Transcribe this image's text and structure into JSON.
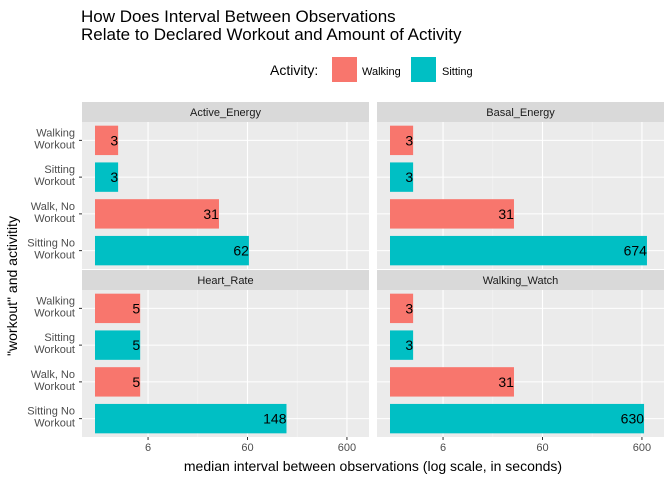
{
  "chart_data": {
    "type": "bar",
    "orientation": "horizontal",
    "title_lines": [
      "How Does Interval Between Observations",
      "Relate to Declared Workout and Amount of Activity"
    ],
    "xlabel": "median interval between observations (log scale, in seconds)",
    "ylabel": "\"workout\" and activitity",
    "x_scale": "log10",
    "xlim": [
      1.3,
      1000
    ],
    "x_ticks": [
      6,
      60,
      600
    ],
    "x_tick_labels": [
      "6",
      "60",
      "600"
    ],
    "grid": true,
    "legend": {
      "title": "Activity:",
      "position": "top",
      "entries": [
        {
          "label": "Walking",
          "color": "#F8766D"
        },
        {
          "label": "Sitting",
          "color": "#00BFC4"
        }
      ]
    },
    "categories": [
      [
        "Walking",
        "Workout"
      ],
      [
        "Sitting",
        "Workout"
      ],
      [
        "Walk, No",
        "Workout"
      ],
      [
        "Sitting No",
        "Workout"
      ]
    ],
    "category_activity": [
      "Walking",
      "Sitting",
      "Walking",
      "Sitting"
    ],
    "panels": [
      {
        "name": "Active_Energy",
        "values": [
          3,
          3,
          31,
          62
        ],
        "labels": [
          "3",
          "3",
          "31",
          "62"
        ]
      },
      {
        "name": "Basal_Energy",
        "values": [
          3,
          3,
          31,
          674
        ],
        "labels": [
          "3",
          "3",
          "31",
          "674"
        ]
      },
      {
        "name": "Heart_Rate",
        "values": [
          5,
          5,
          5,
          148
        ],
        "labels": [
          "5",
          "5",
          "5",
          "148"
        ]
      },
      {
        "name": "Walking_Watch",
        "values": [
          3,
          3,
          31,
          630
        ],
        "labels": [
          "3",
          "3",
          "31",
          "630"
        ]
      }
    ]
  },
  "colors": {
    "walking": "#F8766D",
    "sitting": "#00BFC4",
    "panel_background": "#EBEBEB",
    "strip_background": "#D9D9D9",
    "grid_major": "#FFFFFF"
  }
}
